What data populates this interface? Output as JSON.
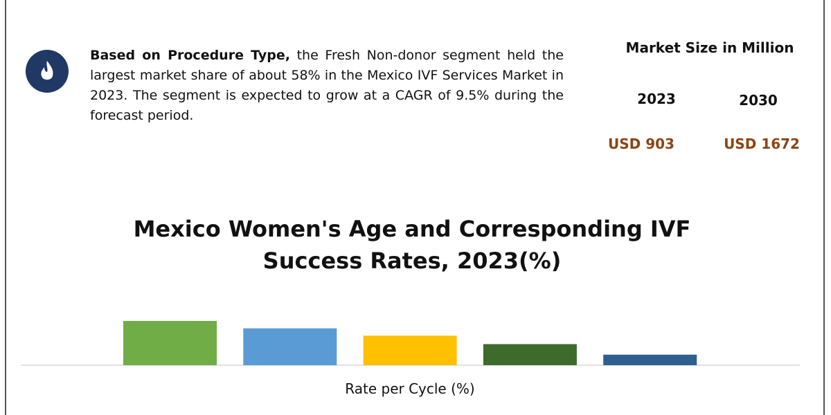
{
  "intro": {
    "lead": "Based on Procedure Type,",
    "text": "the Fresh Non-donor segment held the largest market share of about 58% in the Mexico IVF Services Market in 2023. The segment is expected to grow at a CAGR of 9.5% during the forecast period."
  },
  "market": {
    "heading": "Market Size in Million",
    "years": [
      "2023",
      "2030"
    ],
    "values": [
      "USD 903",
      "USD 1672"
    ]
  },
  "chart_data": {
    "type": "bar",
    "title": "Mexico Women's Age and Corresponding IVF Success Rates, 2023(%)",
    "x_label": "Rate per Cycle (%)",
    "categories": [
      null,
      null,
      null,
      null,
      null
    ],
    "values": [
      42,
      35,
      28,
      20,
      10
    ],
    "colors": [
      "#70ad47",
      "#5b9bd5",
      "#ffc000",
      "#3d6b2b",
      "#2e5f8f"
    ],
    "ylim": [
      0,
      42
    ]
  }
}
